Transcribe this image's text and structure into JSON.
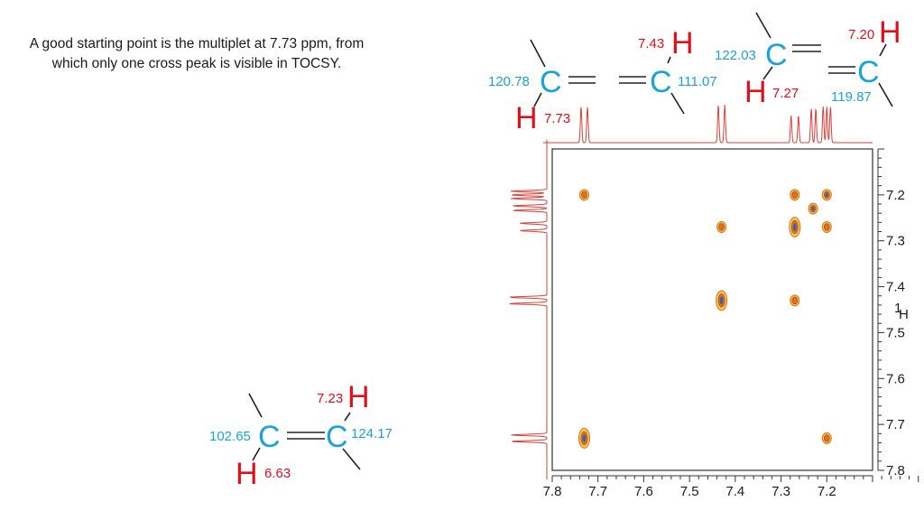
{
  "intro_text": "A good starting point is the multiplet at 7.73 ppm, from which only one cross peak is visible in TOCSY.",
  "atom_c": "C",
  "atom_h": "H",
  "fragments": [
    {
      "id": "frag1",
      "c1_shift": "120.78",
      "h1_shift": "7.73"
    },
    {
      "id": "frag2",
      "c_shift": "111.07",
      "h_shift": "7.43"
    },
    {
      "id": "frag3",
      "c1_shift": "122.03",
      "h1_shift": "7.27",
      "c2_shift": "119.87",
      "h2_shift": "7.20"
    },
    {
      "id": "frag4",
      "c1_shift": "102.65",
      "h1_shift": "6.63",
      "c2_shift": "124.17",
      "h2_shift": "7.23"
    }
  ],
  "spectrum": {
    "axis_unit_sup": "1",
    "axis_unit": "H",
    "x_ticks": [
      "7.8",
      "7.7",
      "7.6",
      "7.5",
      "7.4",
      "7.3",
      "7.2"
    ],
    "y_ticks": [
      "7.2",
      "7.3",
      "7.4",
      "7.5",
      "7.6",
      "7.7",
      "7.8"
    ],
    "colors": {
      "trace": "#d9403a",
      "frame": "#333333",
      "contour_outer": "#f2c94c",
      "contour_mid": "#e07020",
      "contour_inner": "#3060c0"
    }
  },
  "chart_data": {
    "type": "heatmap",
    "experiment_axis_label": "1H",
    "x_range_ppm": [
      7.8,
      7.1
    ],
    "y_range_ppm": [
      7.1,
      7.8
    ],
    "multiplets_ppm": [
      7.73,
      7.43,
      7.27,
      7.23,
      7.2
    ],
    "cross_peaks": [
      {
        "x": 7.73,
        "y": 7.2
      },
      {
        "x": 7.27,
        "y": 7.2
      },
      {
        "x": 7.2,
        "y": 7.2
      },
      {
        "x": 7.23,
        "y": 7.23
      },
      {
        "x": 7.43,
        "y": 7.27
      },
      {
        "x": 7.27,
        "y": 7.27
      },
      {
        "x": 7.2,
        "y": 7.27
      },
      {
        "x": 7.43,
        "y": 7.43
      },
      {
        "x": 7.27,
        "y": 7.43
      },
      {
        "x": 7.73,
        "y": 7.73
      },
      {
        "x": 7.2,
        "y": 7.73
      }
    ]
  }
}
